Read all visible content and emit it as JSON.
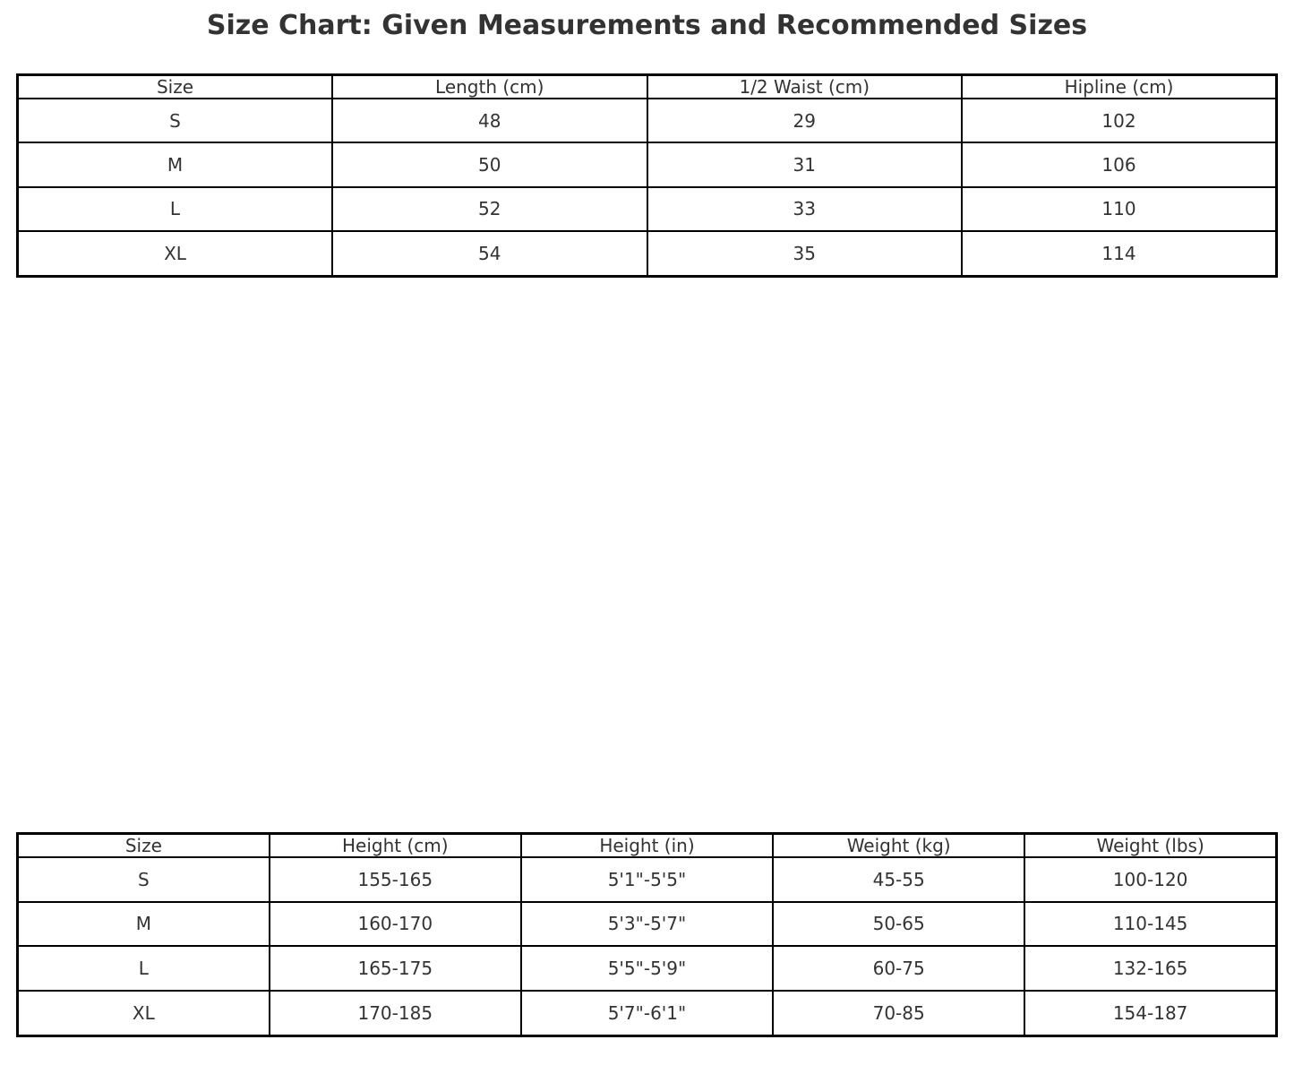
{
  "title": "Size Chart: Given Measurements and Recommended Sizes",
  "colors": {
    "background": "#ffffff",
    "border": "#000000",
    "text": "#333333"
  },
  "chart_data": [
    {
      "type": "table",
      "name": "given_measurements",
      "columns": [
        "Size",
        "Length (cm)",
        "1/2 Waist (cm)",
        "Hipline (cm)"
      ],
      "rows": [
        [
          "S",
          "48",
          "29",
          "102"
        ],
        [
          "M",
          "50",
          "31",
          "106"
        ],
        [
          "L",
          "52",
          "33",
          "110"
        ],
        [
          "XL",
          "54",
          "35",
          "114"
        ]
      ]
    },
    {
      "type": "table",
      "name": "recommended_sizes",
      "columns": [
        "Size",
        "Height (cm)",
        "Height (in)",
        "Weight (kg)",
        "Weight (lbs)"
      ],
      "rows": [
        [
          "S",
          "155-165",
          "5'1\"-5'5\"",
          "45-55",
          "100-120"
        ],
        [
          "M",
          "160-170",
          "5'3\"-5'7\"",
          "50-65",
          "110-145"
        ],
        [
          "L",
          "165-175",
          "5'5\"-5'9\"",
          "60-75",
          "132-165"
        ],
        [
          "XL",
          "170-185",
          "5'7\"-6'1\"",
          "70-85",
          "154-187"
        ]
      ]
    }
  ]
}
